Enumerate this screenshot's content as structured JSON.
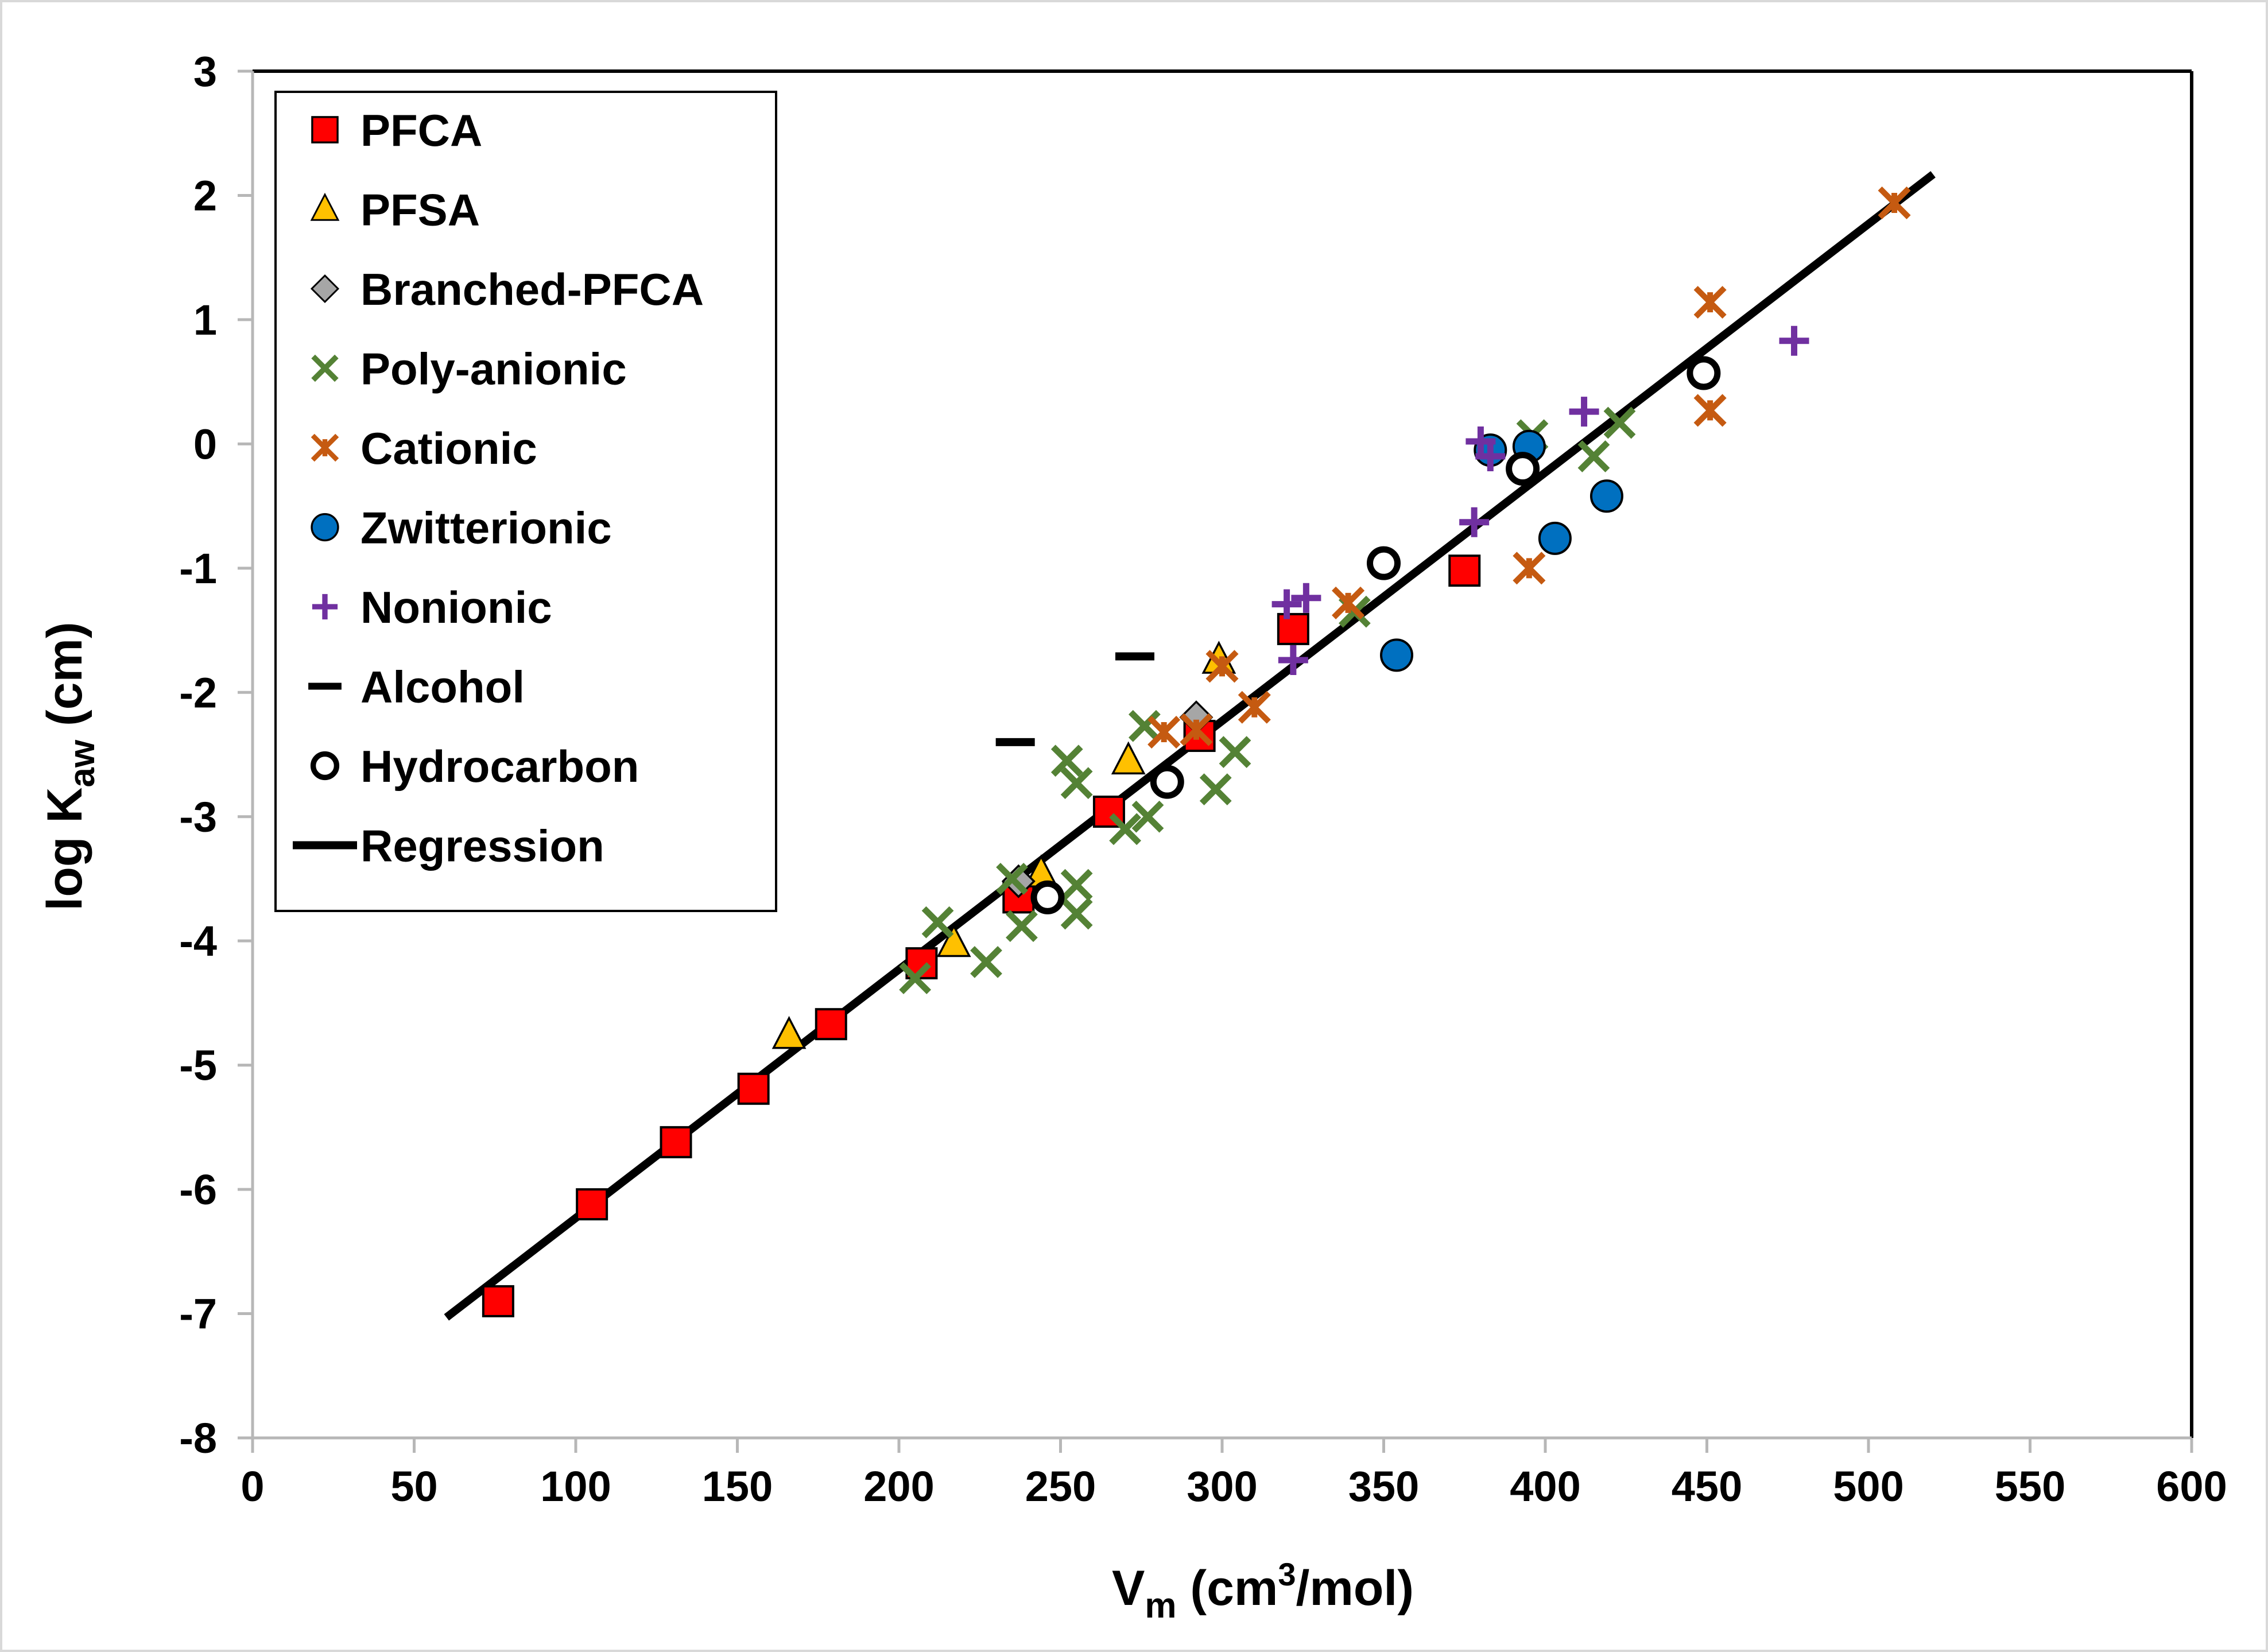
{
  "chart_data": {
    "type": "scatter",
    "title": "",
    "xlabel_main": "V",
    "xlabel_sub": "m",
    "xlabel_rest": " (cm",
    "xlabel_sup": "3",
    "xlabel_end": "/mol)",
    "ylabel_main": "log K",
    "ylabel_sub": "aw",
    "ylabel_end": " (cm)",
    "xlim": [
      0,
      600
    ],
    "ylim": [
      -8,
      3
    ],
    "xticks": [
      0,
      50,
      100,
      150,
      200,
      250,
      300,
      350,
      400,
      450,
      500,
      550,
      600
    ],
    "yticks": [
      3,
      2,
      1,
      0,
      -1,
      -2,
      -3,
      -4,
      -5,
      -6,
      -7,
      -8
    ],
    "legend_position": "top-left",
    "series": [
      {
        "name": "PFCA",
        "marker": "square",
        "color": "#ff0000",
        "points": [
          [
            76,
            -6.9
          ],
          [
            105,
            -6.12
          ],
          [
            131,
            -5.62
          ],
          [
            155,
            -5.19
          ],
          [
            179,
            -4.67
          ],
          [
            207,
            -4.18
          ],
          [
            237,
            -3.65
          ],
          [
            265,
            -2.96
          ],
          [
            293,
            -2.35
          ],
          [
            322,
            -1.49
          ],
          [
            375,
            -1.02
          ]
        ]
      },
      {
        "name": "PFSA",
        "marker": "triangle",
        "color": "#ffc000",
        "points": [
          [
            166,
            -4.76
          ],
          [
            217,
            -4.02
          ],
          [
            244,
            -3.46
          ],
          [
            271,
            -2.55
          ],
          [
            299,
            -1.74
          ]
        ]
      },
      {
        "name": "Branched-PFCA",
        "marker": "diamond",
        "color": "#a6a6a6",
        "points": [
          [
            237,
            -3.52
          ],
          [
            292,
            -2.2
          ]
        ]
      },
      {
        "name": "Poly-anionic",
        "marker": "x",
        "color": "#548235",
        "points": [
          [
            205,
            -4.3
          ],
          [
            212,
            -3.85
          ],
          [
            227,
            -4.17
          ],
          [
            235,
            -3.5
          ],
          [
            238,
            -3.88
          ],
          [
            252,
            -2.55
          ],
          [
            255,
            -2.73
          ],
          [
            255,
            -3.55
          ],
          [
            255,
            -3.78
          ],
          [
            270,
            -3.1
          ],
          [
            276,
            -2.27
          ],
          [
            277,
            -3.0
          ],
          [
            298,
            -2.78
          ],
          [
            304,
            -2.48
          ],
          [
            341,
            -1.35
          ],
          [
            396,
            0.07
          ],
          [
            415,
            -0.1
          ],
          [
            423,
            0.17
          ]
        ]
      },
      {
        "name": "Cationic",
        "marker": "asterisk",
        "color": "#c55a11",
        "points": [
          [
            282,
            -2.32
          ],
          [
            292,
            -2.3
          ],
          [
            300,
            -1.79
          ],
          [
            310,
            -2.12
          ],
          [
            339,
            -1.28
          ],
          [
            395,
            -1.0
          ],
          [
            451,
            1.14
          ],
          [
            451,
            0.27
          ],
          [
            508,
            1.94
          ]
        ]
      },
      {
        "name": "Zwitterionic",
        "marker": "circle",
        "color": "#0070c0",
        "points": [
          [
            354,
            -1.7
          ],
          [
            383,
            -0.05
          ],
          [
            395,
            -0.02
          ],
          [
            403,
            -0.76
          ],
          [
            419,
            -0.42
          ]
        ]
      },
      {
        "name": "Nonionic",
        "marker": "plus",
        "color": "#7030a0",
        "points": [
          [
            320,
            -1.29
          ],
          [
            326,
            -1.24
          ],
          [
            322,
            -1.74
          ],
          [
            378,
            -0.63
          ],
          [
            380,
            0.02
          ],
          [
            383,
            -0.1
          ],
          [
            412,
            0.26
          ],
          [
            477,
            0.83
          ]
        ]
      },
      {
        "name": "Alcohol",
        "marker": "dash",
        "color": "#000000",
        "points": [
          [
            236,
            -2.4
          ],
          [
            273,
            -1.71
          ]
        ]
      },
      {
        "name": "Hydrocarbon",
        "marker": "open-circle",
        "color": "#000000",
        "points": [
          [
            246,
            -3.65
          ],
          [
            283,
            -2.72
          ],
          [
            350,
            -0.96
          ],
          [
            393,
            -0.2
          ],
          [
            449,
            0.57
          ]
        ]
      }
    ],
    "regression": {
      "name": "Regression",
      "x": [
        60,
        520
      ],
      "y": [
        -7.03,
        2.17
      ]
    }
  }
}
